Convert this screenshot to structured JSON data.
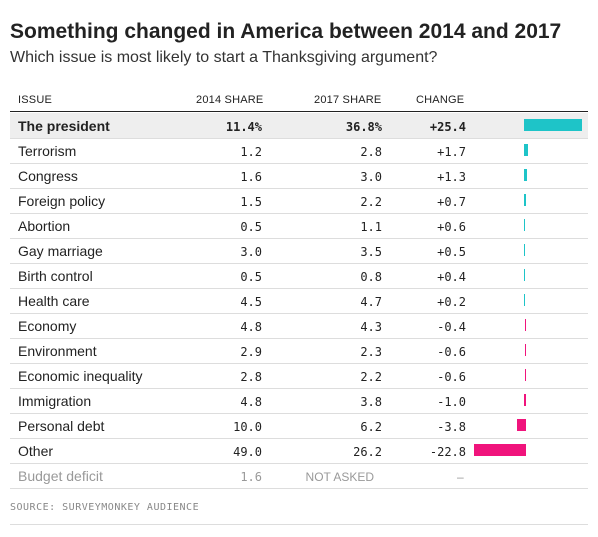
{
  "header": {
    "title": "Something changed in America between 2014 and 2017",
    "subtitle": "Which issue is most likely to start a Thanksgiving argument?"
  },
  "table": {
    "columns": [
      "ISSUE",
      "2014 SHARE",
      "2017 SHARE",
      "CHANGE"
    ],
    "positive_color": "#1ec4c8",
    "negative_color": "#f0147c",
    "rows": [
      {
        "issue": "The president",
        "share_2014": "11.4%",
        "share_2017": "36.8%",
        "change": {
          "value": 25.4,
          "label": "+25.4"
        }
      },
      {
        "issue": "Terrorism",
        "share_2014": "1.2",
        "share_2017": "2.8",
        "change": {
          "value": 1.7,
          "label": "+1.7"
        }
      },
      {
        "issue": "Congress",
        "share_2014": "1.6",
        "share_2017": "3.0",
        "change": {
          "value": 1.3,
          "label": "+1.3"
        }
      },
      {
        "issue": "Foreign policy",
        "share_2014": "1.5",
        "share_2017": "2.2",
        "change": {
          "value": 0.7,
          "label": "+0.7"
        }
      },
      {
        "issue": "Abortion",
        "share_2014": "0.5",
        "share_2017": "1.1",
        "change": {
          "value": 0.6,
          "label": "+0.6"
        }
      },
      {
        "issue": "Gay marriage",
        "share_2014": "3.0",
        "share_2017": "3.5",
        "change": {
          "value": 0.5,
          "label": "+0.5"
        }
      },
      {
        "issue": "Birth control",
        "share_2014": "0.5",
        "share_2017": "0.8",
        "change": {
          "value": 0.4,
          "label": "+0.4"
        }
      },
      {
        "issue": "Health care",
        "share_2014": "4.5",
        "share_2017": "4.7",
        "change": {
          "value": 0.2,
          "label": "+0.2"
        }
      },
      {
        "issue": "Economy",
        "share_2014": "4.8",
        "share_2017": "4.3",
        "change": {
          "value": -0.4,
          "label": "-0.4"
        }
      },
      {
        "issue": "Environment",
        "share_2014": "2.9",
        "share_2017": "2.3",
        "change": {
          "value": -0.6,
          "label": "-0.6"
        }
      },
      {
        "issue": "Economic inequality",
        "share_2014": "2.8",
        "share_2017": "2.2",
        "change": {
          "value": -0.6,
          "label": "-0.6"
        }
      },
      {
        "issue": "Immigration",
        "share_2014": "4.8",
        "share_2017": "3.8",
        "change": {
          "value": -1.0,
          "label": "-1.0"
        }
      },
      {
        "issue": "Personal debt",
        "share_2014": "10.0",
        "share_2017": "6.2",
        "change": {
          "value": -3.8,
          "label": "-3.8"
        }
      },
      {
        "issue": "Other",
        "share_2014": "49.0",
        "share_2017": "26.2",
        "change": {
          "value": -22.8,
          "label": "-22.8"
        }
      },
      {
        "issue": "Budget deficit",
        "share_2014": "1.6",
        "share_2017": "NOT ASKED",
        "change": "–"
      }
    ]
  },
  "source": "SOURCE: SURVEYMONKEY AUDIENCE"
}
